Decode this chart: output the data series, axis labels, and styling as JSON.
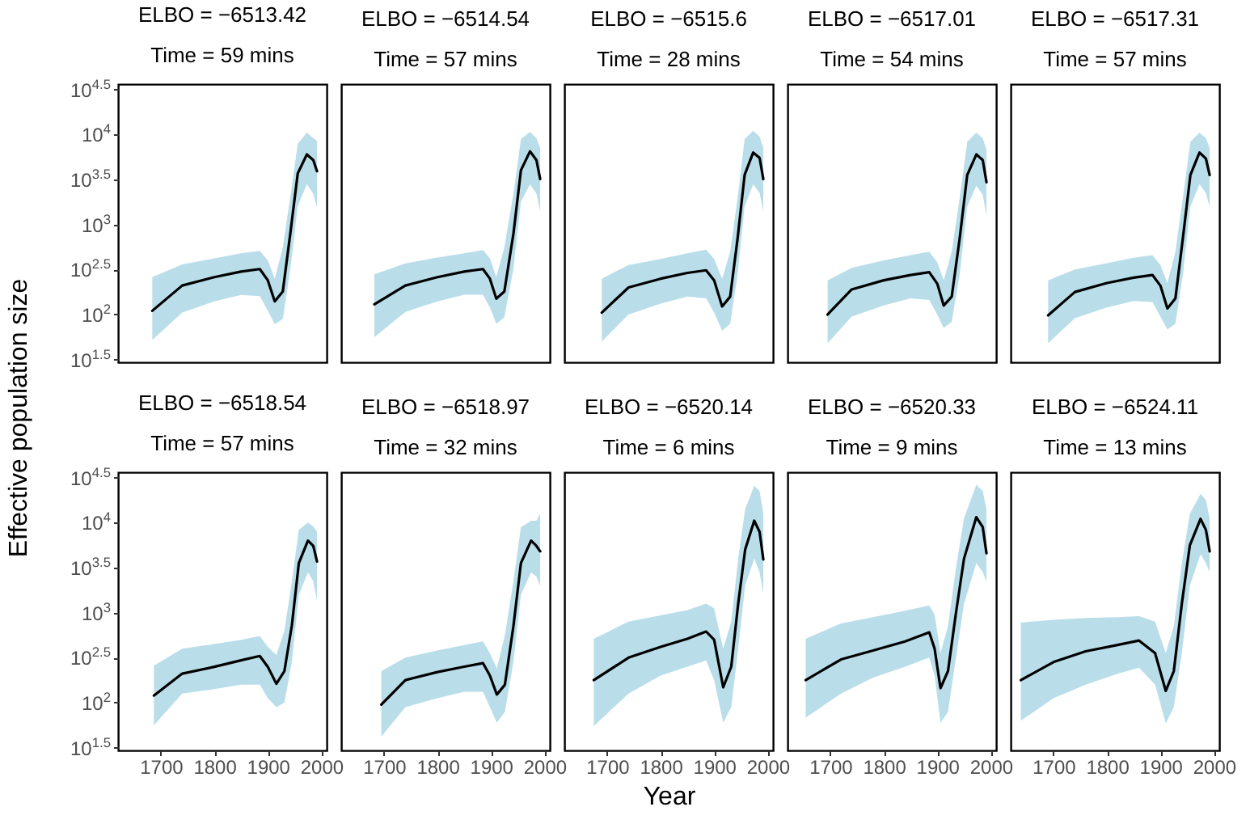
{
  "chart_data": [
    {
      "type": "line",
      "title": "ELBO = −6513.42",
      "subtitle": "Time = 59 mins",
      "ylabel": "Effective population size",
      "xlim": [
        1620,
        2010
      ],
      "ylim": [
        29.5,
        36300
      ],
      "yticks": [
        {
          "value": 31.6228,
          "label": "10$^{1.5}$"
        },
        {
          "value": 100,
          "label": "10$^{2}$"
        },
        {
          "value": 316.228,
          "label": "10$^{2.5}$"
        },
        {
          "value": 1000,
          "label": "10$^{3}$"
        },
        {
          "value": 3162.28,
          "label": "10$^{3.5}$"
        },
        {
          "value": 10000,
          "label": "10$^{4}$"
        },
        {
          "value": 31622.8,
          "label": "10$^{4.5}$"
        }
      ],
      "log": true,
      "tick_labels": "y",
      "x": [
        1684,
        1740,
        1800,
        1850,
        1885,
        1900,
        1913,
        1928,
        1942,
        1956,
        1973,
        1985,
        1992
      ],
      "series": [
        {
          "color": "#000000",
          "values": [
            110,
            210,
            260,
            300,
            320,
            240,
            140,
            180,
            790,
            3700,
            6000,
            5200,
            3900
          ],
          "lower": [
            52,
            105,
            140,
            165,
            160,
            110,
            78,
            89,
            320,
            1600,
            2800,
            2200,
            1550
          ],
          "upper": [
            260,
            360,
            420,
            480,
            510,
            400,
            250,
            560,
            2000,
            7900,
            10500,
            9100,
            8500
          ]
        }
      ]
    },
    {
      "type": "line",
      "title": "ELBO = −6514.54",
      "subtitle": "Time = 57 mins",
      "xlim": [
        1620,
        2010
      ],
      "ylim": [
        29.5,
        36300
      ],
      "log": true,
      "tick_labels": false,
      "x": [
        1682,
        1740,
        1800,
        1850,
        1885,
        1898,
        1910,
        1925,
        1942,
        1956,
        1973,
        1985,
        1992
      ],
      "series": [
        {
          "color": "#000000",
          "values": [
            130,
            210,
            260,
            300,
            320,
            250,
            150,
            180,
            790,
            4000,
            6500,
            5200,
            3200
          ],
          "lower": [
            56,
            107,
            140,
            166,
            166,
            120,
            79,
            93,
            320,
            1800,
            2800,
            2200,
            1400
          ],
          "upper": [
            280,
            370,
            430,
            480,
            520,
            420,
            260,
            560,
            2200,
            8900,
            10700,
            9100,
            7100
          ]
        }
      ]
    },
    {
      "type": "line",
      "title": "ELBO = −6515.6",
      "subtitle": "Time = 28 mins",
      "xlim": [
        1620,
        2010
      ],
      "ylim": [
        29.5,
        36300
      ],
      "log": true,
      "tick_labels": false,
      "x": [
        1690,
        1740,
        1800,
        1850,
        1885,
        1900,
        1915,
        1930,
        1944,
        1957,
        1973,
        1985,
        1992
      ],
      "series": [
        {
          "color": "#000000",
          "values": [
            105,
            200,
            250,
            290,
            310,
            240,
            123,
            158,
            710,
            3550,
            6300,
            5500,
            3200
          ],
          "lower": [
            50,
            100,
            132,
            158,
            151,
            105,
            66,
            79,
            280,
            1580,
            2800,
            2240,
            1410
          ],
          "upper": [
            250,
            355,
            415,
            480,
            525,
            415,
            250,
            500,
            2000,
            8900,
            11000,
            9500,
            7100
          ]
        }
      ]
    },
    {
      "type": "line",
      "title": "ELBO = −6517.01",
      "subtitle": "Time = 54 mins",
      "xlim": [
        1620,
        2010
      ],
      "ylim": [
        29.5,
        36300
      ],
      "log": true,
      "tick_labels": false,
      "x": [
        1695,
        1740,
        1800,
        1850,
        1885,
        1900,
        1912,
        1927,
        1942,
        1956,
        1973,
        1985,
        1992
      ],
      "series": [
        {
          "color": "#000000",
          "values": [
            100,
            190,
            240,
            275,
            295,
            220,
            126,
            158,
            710,
            3550,
            6000,
            5200,
            2950
          ],
          "lower": [
            48,
            95,
            126,
            151,
            145,
            100,
            71,
            83,
            280,
            1580,
            2700,
            2140,
            1260
          ],
          "upper": [
            240,
            330,
            400,
            457,
            500,
            380,
            240,
            500,
            2000,
            8300,
            10500,
            9100,
            6800
          ]
        }
      ]
    },
    {
      "type": "line",
      "title": "ELBO = −6517.31",
      "subtitle": "Time = 57 mins",
      "xlim": [
        1620,
        2010
      ],
      "ylim": [
        29.5,
        36300
      ],
      "log": true,
      "tick_labels": false,
      "x": [
        1690,
        1740,
        1800,
        1850,
        1885,
        1900,
        1913,
        1928,
        1942,
        1956,
        1973,
        1985,
        1992
      ],
      "series": [
        {
          "color": "#000000",
          "values": [
            98,
            178,
            224,
            257,
            275,
            209,
            117,
            151,
            710,
            3550,
            6300,
            5400,
            3550
          ],
          "lower": [
            48,
            91,
            120,
            141,
            138,
            95,
            68,
            79,
            280,
            1580,
            2800,
            2240,
            1580
          ],
          "upper": [
            240,
            316,
            372,
            427,
            457,
            355,
            224,
            500,
            2000,
            8300,
            10500,
            9100,
            7100
          ]
        }
      ]
    },
    {
      "type": "line",
      "title": "ELBO = −6518.54",
      "subtitle": "Time = 57 mins",
      "xlim": [
        1620,
        2010
      ],
      "ylim": [
        29.5,
        36300
      ],
      "xticks": [
        1700,
        1800,
        1900,
        2000
      ],
      "yticks": [
        {
          "value": 31.6228,
          "label": "10$^{1.5}$"
        },
        {
          "value": 100,
          "label": "10$^{2}$"
        },
        {
          "value": 316.228,
          "label": "10$^{2.5}$"
        },
        {
          "value": 1000,
          "label": "10$^{3}$"
        },
        {
          "value": 3162.28,
          "label": "10$^{3.5}$"
        },
        {
          "value": 10000,
          "label": "10$^{4}$"
        },
        {
          "value": 31622.8,
          "label": "10$^{4.5}$"
        }
      ],
      "log": true,
      "x": [
        1687,
        1740,
        1800,
        1850,
        1885,
        1900,
        1916,
        1931,
        1945,
        1958,
        1975,
        1985,
        1992
      ],
      "series": [
        {
          "color": "#000000",
          "values": [
            120,
            210,
            250,
            295,
            330,
            250,
            162,
            224,
            724,
            3550,
            6300,
            5500,
            3700
          ],
          "lower": [
            56,
            126,
            141,
            158,
            158,
            112,
            89,
            100,
            282,
            1580,
            2800,
            2240,
            1350
          ],
          "upper": [
            257,
            398,
            447,
            500,
            550,
            417,
            339,
            631,
            2240,
            8300,
            10000,
            9100,
            7900
          ]
        }
      ]
    },
    {
      "type": "line",
      "title": "ELBO = −6518.97",
      "subtitle": "Time = 32 mins",
      "xlim": [
        1620,
        2010
      ],
      "ylim": [
        29.5,
        36300
      ],
      "xticks": [
        1700,
        1800,
        1900,
        2000
      ],
      "log": true,
      "tick_labels": "x",
      "x": [
        1695,
        1740,
        1800,
        1850,
        1885,
        1898,
        1911,
        1926,
        1942,
        1956,
        1975,
        1985,
        1992
      ],
      "series": [
        {
          "color": "#000000",
          "values": [
            95,
            178,
            219,
            251,
            275,
            200,
            123,
            158,
            710,
            3550,
            6300,
            5500,
            4800
          ],
          "lower": [
            42,
            89,
            112,
            132,
            132,
            89,
            60,
            79,
            282,
            1580,
            2800,
            2500,
            2000
          ],
          "upper": [
            224,
            316,
            380,
            437,
            479,
            355,
            240,
            562,
            2240,
            8900,
            10500,
            10500,
            12600
          ]
        }
      ]
    },
    {
      "type": "line",
      "title": "ELBO = −6520.14",
      "subtitle": "Time = 6 mins",
      "xlabel": "Year",
      "xlim": [
        1620,
        2010
      ],
      "ylim": [
        29.5,
        36300
      ],
      "xticks": [
        1700,
        1800,
        1900,
        2000
      ],
      "log": true,
      "tick_labels": "x",
      "x": [
        1675,
        1740,
        1800,
        1850,
        1885,
        1900,
        1917,
        1932,
        1945,
        1958,
        1975,
        1985,
        1992
      ],
      "series": [
        {
          "color": "#000000",
          "values": [
            178,
            316,
            417,
            513,
            617,
            500,
            148,
            251,
            1260,
            5000,
            10500,
            7900,
            3900
          ],
          "lower": [
            55,
            126,
            200,
            251,
            295,
            178,
            60,
            89,
            398,
            2000,
            4000,
            2800,
            1660
          ],
          "upper": [
            513,
            794,
            933,
            1070,
            1260,
            1120,
            398,
            794,
            4000,
            14100,
            25700,
            22400,
            12600
          ]
        }
      ]
    },
    {
      "type": "line",
      "title": "ELBO = −6520.33",
      "subtitle": "Time = 9 mins",
      "xlim": [
        1620,
        2010
      ],
      "ylim": [
        29.5,
        36300
      ],
      "xticks": [
        1700,
        1800,
        1900,
        2000
      ],
      "log": true,
      "tick_labels": "x",
      "x": [
        1654,
        1720,
        1780,
        1840,
        1885,
        1895,
        1906,
        1920,
        1935,
        1950,
        1973,
        1985,
        1992
      ],
      "series": [
        {
          "color": "#000000",
          "values": [
            178,
            302,
            380,
            479,
            603,
            398,
            145,
            224,
            1000,
            3980,
            11500,
            8900,
            4570
          ],
          "lower": [
            68,
            126,
            190,
            251,
            316,
            200,
            60,
            79,
            316,
            1260,
            3550,
            2820,
            2190
          ],
          "upper": [
            513,
            759,
            891,
            1050,
            1200,
            955,
            355,
            708,
            3160,
            11200,
            26300,
            22400,
            14100
          ]
        }
      ]
    },
    {
      "type": "line",
      "title": "ELBO = −6524.11",
      "subtitle": "Time = 13 mins",
      "xlim": [
        1620,
        2010
      ],
      "ylim": [
        29.5,
        36300
      ],
      "xticks": [
        1700,
        1800,
        1900,
        2000
      ],
      "log": true,
      "tick_labels": "x",
      "x": [
        1639,
        1700,
        1760,
        1820,
        1860,
        1890,
        1910,
        1925,
        1940,
        1955,
        1975,
        1985,
        1992
      ],
      "series": [
        {
          "color": "#000000",
          "values": [
            178,
            282,
            372,
            437,
            490,
            355,
            135,
            224,
            1260,
            5600,
            11000,
            8300,
            4800
          ],
          "lower": [
            63,
            112,
            158,
            209,
            245,
            158,
            59,
            89,
            355,
            2000,
            4470,
            3550,
            2820
          ],
          "upper": [
            776,
            832,
            871,
            891,
            912,
            794,
            355,
            708,
            3550,
            12600,
            20900,
            17800,
            11200
          ]
        }
      ]
    }
  ]
}
